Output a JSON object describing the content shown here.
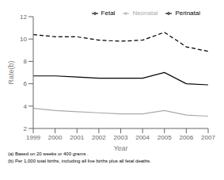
{
  "chart_data": {
    "type": "line",
    "x": [
      1999,
      2000,
      2001,
      2002,
      2003,
      2004,
      2005,
      2006,
      2007
    ],
    "series": [
      {
        "name": "Fetal",
        "color": "#000000",
        "line_style": "solid",
        "values": [
          6.7,
          6.7,
          6.6,
          6.5,
          6.5,
          6.5,
          7.0,
          6.0,
          5.9
        ]
      },
      {
        "name": "Neonatal",
        "color": "#aaaaaa",
        "line_style": "solid",
        "values": [
          3.8,
          3.6,
          3.5,
          3.4,
          3.3,
          3.3,
          3.6,
          3.2,
          3.1
        ]
      },
      {
        "name": "Perinatal",
        "color": "#000000",
        "line_style": "dashed",
        "values": [
          10.4,
          10.2,
          10.2,
          9.9,
          9.8,
          9.9,
          10.6,
          9.3,
          8.9
        ]
      }
    ],
    "xlabel": "Year",
    "ylabel": "Rate(b)",
    "xlim": [
      1999,
      2007
    ],
    "xticks": [
      1999,
      2000,
      2001,
      2002,
      2003,
      2004,
      2005,
      2006,
      2007
    ],
    "ylim": [
      2,
      12
    ],
    "yticks": [
      2,
      4,
      6,
      8,
      10,
      12
    ],
    "legend": "top",
    "grid": false,
    "annotations": [
      "(a)  Based on 20 weeks or 400 grams .",
      "(b)  Per 1,000 total births, including all live births plus all fetal deaths."
    ]
  }
}
